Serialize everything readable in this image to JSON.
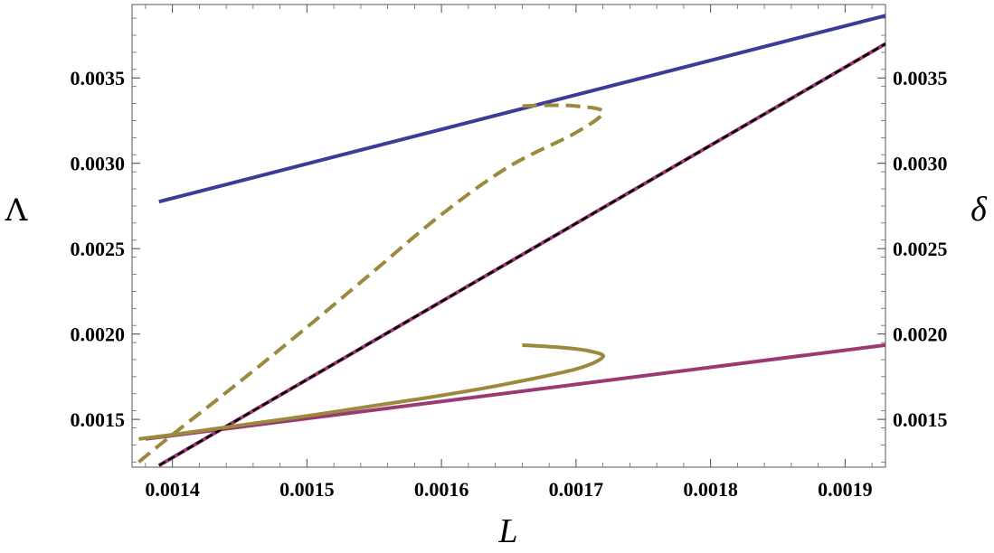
{
  "chart_data": {
    "type": "line",
    "title": "",
    "xlabel": "L",
    "ylabel_left": "Λ",
    "ylabel_right": "δ",
    "xlim": [
      0.00137,
      0.00193
    ],
    "ylim": [
      0.00122,
      0.00393
    ],
    "x_ticks": [
      "0.0014",
      "0.0015",
      "0.0016",
      "0.0017",
      "0.0018",
      "0.0019"
    ],
    "x_tick_values": [
      0.0014,
      0.0015,
      0.0016,
      0.0017,
      0.0018,
      0.0019
    ],
    "y_ticks_left": [
      "0.0015",
      "0.0020",
      "0.0025",
      "0.0030",
      "0.0035"
    ],
    "y_ticks_right": [
      "0.0015",
      "0.0020",
      "0.0025",
      "0.0030",
      "0.0035"
    ],
    "y_tick_values": [
      0.0015,
      0.002,
      0.0025,
      0.003,
      0.0035
    ],
    "grid": false,
    "legend": "none",
    "series": [
      {
        "color": "#3b3b9a",
        "style": "solid",
        "x": [
          0.00139,
          0.00193
        ],
        "y": [
          0.002775,
          0.003865
        ]
      },
      {
        "color": "#9b3a72",
        "style": "solid",
        "x": [
          0.00138,
          0.00193
        ],
        "y": [
          0.001385,
          0.001935
        ]
      },
      {
        "color": "#9b3a72",
        "style": "solid",
        "x": [
          0.00139,
          0.00193
        ],
        "y": [
          0.00123,
          0.0037
        ]
      },
      {
        "color": "#000000",
        "style": "dashed",
        "x": [
          0.00139,
          0.00193
        ],
        "y": [
          0.00123,
          0.0037
        ]
      },
      {
        "color": "#9b8a3e",
        "style": "solid",
        "x": [
          0.001375,
          0.0014,
          0.00145,
          0.0015,
          0.00155,
          0.0016,
          0.00165,
          0.0017,
          0.00172,
          0.00171,
          0.00169,
          0.00166
        ],
        "y": [
          0.001385,
          0.00141,
          0.001465,
          0.00152,
          0.00158,
          0.00164,
          0.00171,
          0.001795,
          0.001865,
          0.0019,
          0.00192,
          0.001935
        ]
      },
      {
        "color": "#9b8a3e",
        "style": "dashed",
        "x": [
          0.001375,
          0.0014,
          0.00145,
          0.0015,
          0.00155,
          0.0016,
          0.00165,
          0.0017,
          0.00172,
          0.0017,
          0.00168,
          0.00166
        ],
        "y": [
          0.00125,
          0.00141,
          0.00172,
          0.00204,
          0.00237,
          0.0027,
          0.00298,
          0.00318,
          0.0033,
          0.003335,
          0.00334,
          0.003335
        ]
      }
    ]
  }
}
